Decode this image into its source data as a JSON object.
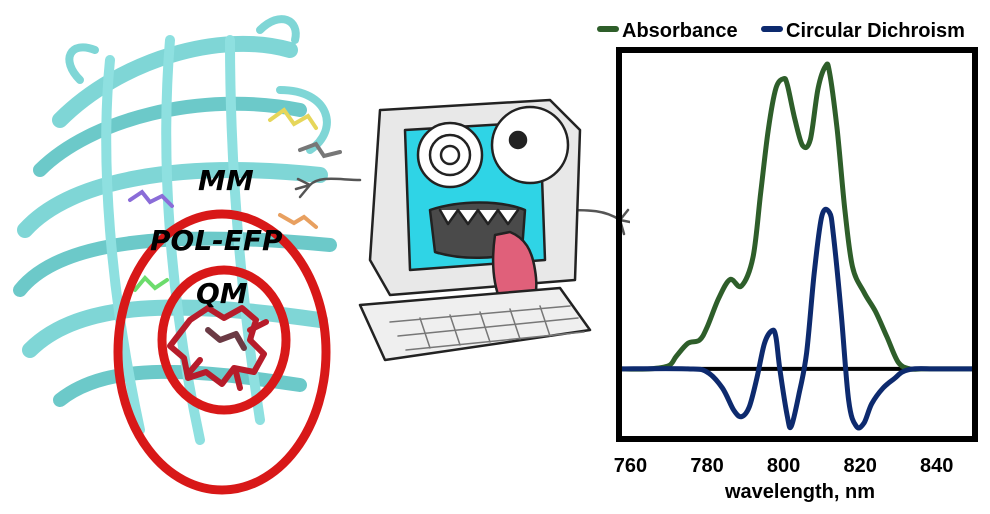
{
  "figure": {
    "layers": {
      "mm": "MM",
      "pol_efp": "POL-EFP",
      "qm": "QM"
    },
    "colors": {
      "protein": "#7fd6d6",
      "ring": "#d81818",
      "chromophore": "#b71c2a",
      "screen": "#2fd4e6",
      "tongue": "#e0607a"
    }
  },
  "chart_data": {
    "type": "line",
    "title": "",
    "xlabel": "wavelength, nm",
    "ylabel": "",
    "xlim": [
      757,
      850
    ],
    "ylim": [
      -0.22,
      1.0
    ],
    "xticks": [
      760,
      780,
      800,
      820,
      840
    ],
    "legend": {
      "placement": "top"
    },
    "grid": false,
    "zero_line": true,
    "series": [
      {
        "name": "Absorbance",
        "color": "#2e5e2a",
        "x": [
          757,
          765,
          770,
          772,
          775,
          778,
          780,
          783,
          786,
          789,
          792,
          794,
          796,
          798,
          800,
          801,
          803,
          805,
          807,
          809,
          811,
          812,
          814,
          816,
          818,
          821,
          824,
          827,
          830,
          833,
          836,
          840,
          850
        ],
        "y": [
          0,
          0,
          0.01,
          0.04,
          0.08,
          0.09,
          0.13,
          0.22,
          0.28,
          0.26,
          0.35,
          0.55,
          0.75,
          0.88,
          0.91,
          0.89,
          0.78,
          0.7,
          0.72,
          0.88,
          0.95,
          0.93,
          0.75,
          0.5,
          0.32,
          0.24,
          0.18,
          0.1,
          0.02,
          0,
          0,
          0,
          0
        ]
      },
      {
        "name": "Circular Dichroism",
        "color": "#0d2a6e",
        "x": [
          757,
          775,
          780,
          784,
          787,
          789,
          791,
          793,
          795,
          797,
          798,
          799,
          801,
          802,
          804,
          806,
          808,
          810,
          812,
          813,
          815,
          817,
          819,
          821,
          823,
          826,
          829,
          831,
          834,
          840,
          850
        ],
        "y": [
          0,
          0,
          -0.01,
          -0.06,
          -0.13,
          -0.15,
          -0.12,
          -0.03,
          0.08,
          0.12,
          0.1,
          0.0,
          -0.15,
          -0.18,
          -0.08,
          0.05,
          0.3,
          0.48,
          0.49,
          0.42,
          0.18,
          -0.1,
          -0.18,
          -0.17,
          -0.11,
          -0.06,
          -0.03,
          -0.01,
          0,
          0,
          0
        ]
      }
    ]
  }
}
